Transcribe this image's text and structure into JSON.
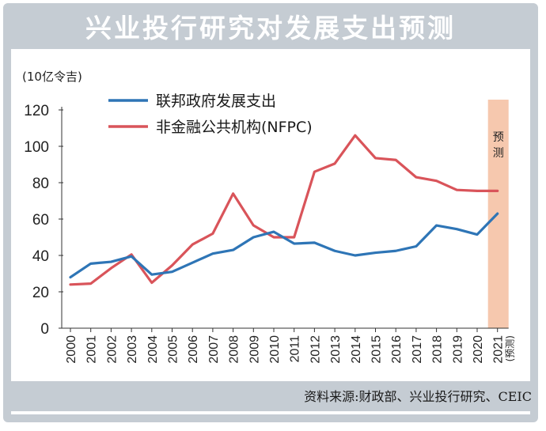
{
  "title": "兴业投行研究对发展支出预测",
  "unit": "(10亿令吉)",
  "source": "资料来源:财政部、兴业投行研究、CEIC",
  "forecast_label": [
    "预",
    "测"
  ],
  "colors": {
    "background": "#c5ccd3",
    "forecast_band": "#f6c8ae",
    "federal": "#2e75b6",
    "nfpc": "#d9545a"
  },
  "chart_data": {
    "type": "line",
    "x": [
      "2000",
      "2001",
      "2002",
      "2003",
      "2004",
      "2005",
      "2006",
      "2007",
      "2008",
      "2009",
      "2010",
      "2011",
      "2012",
      "2013",
      "2014",
      "2015",
      "2016",
      "2017",
      "2018",
      "2019",
      "2020",
      "2021"
    ],
    "x_extra_label": {
      "2021": "(预测)"
    },
    "ylim": [
      0,
      120
    ],
    "yticks": [
      0,
      20,
      40,
      60,
      80,
      100,
      120
    ],
    "forecast_category": "2021",
    "legend_position": "top-left",
    "series": [
      {
        "name": "联邦政府发展支出",
        "color": "#2e75b6",
        "values": [
          28,
          35.5,
          36.5,
          39.5,
          29.5,
          31,
          36,
          41,
          43,
          50,
          53,
          46.5,
          47,
          42.5,
          40,
          41.5,
          42.5,
          45,
          56.5,
          54.5,
          51.5,
          63
        ]
      },
      {
        "name": "非金融公共机构(NFPC)",
        "color": "#d9545a",
        "values": [
          24,
          24.5,
          33,
          40.5,
          25,
          34.5,
          46,
          52,
          74,
          56.5,
          50,
          50,
          86,
          90.5,
          106,
          93.5,
          92.5,
          83,
          81,
          76,
          75.5,
          75.5
        ]
      }
    ]
  }
}
